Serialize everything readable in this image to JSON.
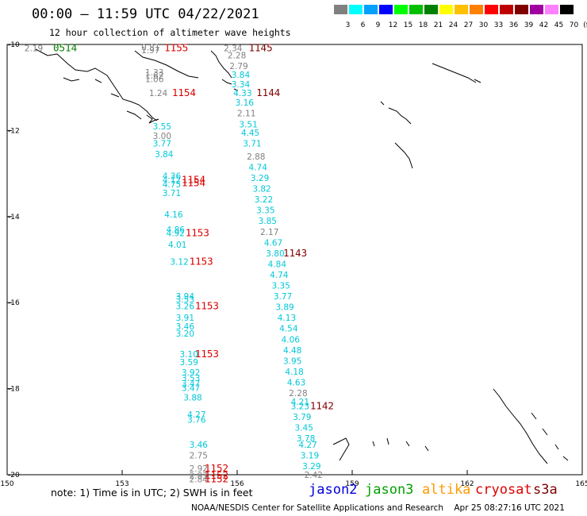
{
  "header": {
    "title": "00:00 — 11:59 UTC 04/22/2021",
    "subtitle": "12 hour collection of altimeter wave heights"
  },
  "color_scale": {
    "unit": "(ft)",
    "bins": [
      {
        "label": "3",
        "color": "#808080"
      },
      {
        "label": "6",
        "color": "#00ffff"
      },
      {
        "label": "9",
        "color": "#00a0ff"
      },
      {
        "label": "12",
        "color": "#0000ff"
      },
      {
        "label": "15",
        "color": "#00ff00"
      },
      {
        "label": "18",
        "color": "#00c000"
      },
      {
        "label": "21",
        "color": "#008000"
      },
      {
        "label": "24",
        "color": "#ffff00"
      },
      {
        "label": "27",
        "color": "#ffc000"
      },
      {
        "label": "30",
        "color": "#ff8000"
      },
      {
        "label": "33",
        "color": "#ff0000"
      },
      {
        "label": "36",
        "color": "#c00000"
      },
      {
        "label": "39",
        "color": "#800000"
      },
      {
        "label": "42",
        "color": "#a000a0"
      },
      {
        "label": "45",
        "color": "#ff80ff"
      },
      {
        "label": "70",
        "color": "#000000"
      }
    ]
  },
  "map": {
    "lon_labels": [
      "150",
      "153",
      "156",
      "159",
      "162",
      "165"
    ],
    "lat_labels": [
      "-10",
      "-12",
      "-14",
      "-16",
      "-18",
      "-20"
    ],
    "lon_range": [
      150,
      165
    ],
    "lat_range": [
      -20,
      -10
    ],
    "grid": false
  },
  "observations": [
    {
      "v": "2.19",
      "lon": 150.45,
      "lat": -10.08,
      "c": "#808080"
    },
    {
      "v": "2.34",
      "lon": 155.65,
      "lat": -10.08,
      "c": "#808080"
    },
    {
      "v": "0.81",
      "lon": 153.5,
      "lat": -10.06,
      "c": "#808080"
    },
    {
      "v": "1.97",
      "lon": 153.5,
      "lat": -10.13,
      "c": "#808080"
    },
    {
      "v": "2.28",
      "lon": 155.75,
      "lat": -10.25,
      "c": "#808080"
    },
    {
      "v": "2.79",
      "lon": 155.8,
      "lat": -10.5,
      "c": "#808080"
    },
    {
      "v": "1.33",
      "lon": 153.6,
      "lat": -10.65,
      "c": "#808080"
    },
    {
      "v": "1.62",
      "lon": 153.6,
      "lat": -10.72,
      "c": "#808080"
    },
    {
      "v": "1.06",
      "lon": 153.6,
      "lat": -10.8,
      "c": "#808080"
    },
    {
      "v": "3.84",
      "lon": 155.85,
      "lat": -10.7,
      "c": "#00c8d8"
    },
    {
      "v": "3.34",
      "lon": 155.85,
      "lat": -10.92,
      "c": "#00c8d8"
    },
    {
      "v": "1.24",
      "lon": 153.7,
      "lat": -11.13,
      "c": "#808080"
    },
    {
      "v": "4.33",
      "lon": 155.9,
      "lat": -11.13,
      "c": "#00c8d8"
    },
    {
      "v": "3.16",
      "lon": 155.95,
      "lat": -11.35,
      "c": "#00c8d8"
    },
    {
      "v": "2.11",
      "lon": 156.0,
      "lat": -11.6,
      "c": "#808080"
    },
    {
      "v": "3.51",
      "lon": 156.05,
      "lat": -11.85,
      "c": "#00c8d8"
    },
    {
      "v": "3.55",
      "lon": 153.8,
      "lat": -11.9,
      "c": "#00c8d8"
    },
    {
      "v": "4.45",
      "lon": 156.1,
      "lat": -12.05,
      "c": "#00c8d8"
    },
    {
      "v": "3.00",
      "lon": 153.8,
      "lat": -12.12,
      "c": "#808080"
    },
    {
      "v": "3.71",
      "lon": 156.15,
      "lat": -12.3,
      "c": "#00c8d8"
    },
    {
      "v": "3.77",
      "lon": 153.8,
      "lat": -12.3,
      "c": "#00c8d8"
    },
    {
      "v": "3.84",
      "lon": 153.85,
      "lat": -12.55,
      "c": "#00c8d8"
    },
    {
      "v": "2.88",
      "lon": 156.25,
      "lat": -12.6,
      "c": "#808080"
    },
    {
      "v": "4.74",
      "lon": 156.3,
      "lat": -12.85,
      "c": "#00c8d8"
    },
    {
      "v": "4.36",
      "lon": 154.05,
      "lat": -13.05,
      "c": "#00c8d8"
    },
    {
      "v": "3.29",
      "lon": 156.35,
      "lat": -13.1,
      "c": "#00c8d8"
    },
    {
      "v": "4.12",
      "lon": 154.05,
      "lat": -13.15,
      "c": "#00c8d8"
    },
    {
      "v": "4.75",
      "lon": 154.05,
      "lat": -13.25,
      "c": "#00c8d8"
    },
    {
      "v": "3.82",
      "lon": 156.4,
      "lat": -13.35,
      "c": "#00c8d8"
    },
    {
      "v": "3.71",
      "lon": 154.05,
      "lat": -13.45,
      "c": "#00c8d8"
    },
    {
      "v": "3.22",
      "lon": 156.45,
      "lat": -13.6,
      "c": "#00c8d8"
    },
    {
      "v": "3.35",
      "lon": 156.5,
      "lat": -13.85,
      "c": "#00c8d8"
    },
    {
      "v": "4.16",
      "lon": 154.1,
      "lat": -13.95,
      "c": "#00c8d8"
    },
    {
      "v": "3.85",
      "lon": 156.55,
      "lat": -14.1,
      "c": "#00c8d8"
    },
    {
      "v": "2.17",
      "lon": 156.6,
      "lat": -14.35,
      "c": "#808080"
    },
    {
      "v": "4.86",
      "lon": 154.15,
      "lat": -14.3,
      "c": "#00c8d8"
    },
    {
      "v": "4.92",
      "lon": 154.15,
      "lat": -14.38,
      "c": "#00c8d8"
    },
    {
      "v": "4.67",
      "lon": 156.7,
      "lat": -14.6,
      "c": "#00c8d8"
    },
    {
      "v": "4.01",
      "lon": 154.2,
      "lat": -14.65,
      "c": "#00c8d8"
    },
    {
      "v": "3.80",
      "lon": 156.75,
      "lat": -14.85,
      "c": "#00c8d8"
    },
    {
      "v": "4.84",
      "lon": 156.8,
      "lat": -15.1,
      "c": "#00c8d8"
    },
    {
      "v": "3.12",
      "lon": 154.25,
      "lat": -15.05,
      "c": "#00c8d8"
    },
    {
      "v": "4.74",
      "lon": 156.85,
      "lat": -15.35,
      "c": "#00c8d8"
    },
    {
      "v": "3.35",
      "lon": 156.9,
      "lat": -15.6,
      "c": "#00c8d8"
    },
    {
      "v": "3.77",
      "lon": 156.95,
      "lat": -15.85,
      "c": "#00c8d8"
    },
    {
      "v": "3.94",
      "lon": 154.4,
      "lat": -15.85,
      "c": "#00c8d8"
    },
    {
      "v": "3.53",
      "lon": 154.4,
      "lat": -15.92,
      "c": "#00c8d8"
    },
    {
      "v": "3.89",
      "lon": 157.0,
      "lat": -16.1,
      "c": "#00c8d8"
    },
    {
      "v": "3.26",
      "lon": 154.4,
      "lat": -16.08,
      "c": "#00c8d8"
    },
    {
      "v": "4.13",
      "lon": 157.05,
      "lat": -16.35,
      "c": "#00c8d8"
    },
    {
      "v": "3.91",
      "lon": 154.4,
      "lat": -16.35,
      "c": "#00c8d8"
    },
    {
      "v": "4.54",
      "lon": 157.1,
      "lat": -16.6,
      "c": "#00c8d8"
    },
    {
      "v": "3.46",
      "lon": 154.4,
      "lat": -16.55,
      "c": "#00c8d8"
    },
    {
      "v": "3.20",
      "lon": 154.4,
      "lat": -16.72,
      "c": "#00c8d8"
    },
    {
      "v": "4.06",
      "lon": 157.15,
      "lat": -16.85,
      "c": "#00c8d8"
    },
    {
      "v": "4.48",
      "lon": 157.2,
      "lat": -17.1,
      "c": "#00c8d8"
    },
    {
      "v": "3.10",
      "lon": 154.5,
      "lat": -17.2,
      "c": "#00c8d8"
    },
    {
      "v": "3.95",
      "lon": 157.2,
      "lat": -17.35,
      "c": "#00c8d8"
    },
    {
      "v": "3.59",
      "lon": 154.5,
      "lat": -17.38,
      "c": "#00c8d8"
    },
    {
      "v": "4.18",
      "lon": 157.25,
      "lat": -17.6,
      "c": "#00c8d8"
    },
    {
      "v": "3.92",
      "lon": 154.55,
      "lat": -17.62,
      "c": "#00c8d8"
    },
    {
      "v": "3.53",
      "lon": 154.55,
      "lat": -17.75,
      "c": "#00c8d8"
    },
    {
      "v": "4.63",
      "lon": 157.3,
      "lat": -17.85,
      "c": "#00c8d8"
    },
    {
      "v": "3.47",
      "lon": 154.55,
      "lat": -17.88,
      "c": "#00c8d8"
    },
    {
      "v": "3.47",
      "lon": 154.55,
      "lat": -17.98,
      "c": "#00c8d8"
    },
    {
      "v": "2.28",
      "lon": 157.35,
      "lat": -18.1,
      "c": "#808080"
    },
    {
      "v": "3.88",
      "lon": 154.6,
      "lat": -18.2,
      "c": "#00c8d8"
    },
    {
      "v": "4.21",
      "lon": 157.4,
      "lat": -18.3,
      "c": "#00c8d8"
    },
    {
      "v": "3.23",
      "lon": 157.4,
      "lat": -18.4,
      "c": "#00c8d8"
    },
    {
      "v": "4.27",
      "lon": 154.7,
      "lat": -18.6,
      "c": "#00c8d8"
    },
    {
      "v": "3.79",
      "lon": 157.45,
      "lat": -18.65,
      "c": "#00c8d8"
    },
    {
      "v": "3.76",
      "lon": 154.7,
      "lat": -18.72,
      "c": "#00c8d8"
    },
    {
      "v": "3.45",
      "lon": 157.5,
      "lat": -18.9,
      "c": "#00c8d8"
    },
    {
      "v": "3.78",
      "lon": 157.55,
      "lat": -19.15,
      "c": "#00c8d8"
    },
    {
      "v": "3.46",
      "lon": 154.75,
      "lat": -19.3,
      "c": "#00c8d8"
    },
    {
      "v": "4.27",
      "lon": 157.6,
      "lat": -19.3,
      "c": "#00c8d8"
    },
    {
      "v": "2.75",
      "lon": 154.75,
      "lat": -19.55,
      "c": "#808080"
    },
    {
      "v": "3.19",
      "lon": 157.65,
      "lat": -19.55,
      "c": "#00c8d8"
    },
    {
      "v": "3.29",
      "lon": 157.7,
      "lat": -19.8,
      "c": "#00c8d8"
    },
    {
      "v": "2.92",
      "lon": 154.75,
      "lat": -19.85,
      "c": "#808080"
    },
    {
      "v": "2.42",
      "lon": 157.75,
      "lat": -20.0,
      "c": "#808080"
    },
    {
      "v": "2.83",
      "lon": 154.75,
      "lat": -20.02,
      "c": "#808080"
    },
    {
      "v": "2.84",
      "lon": 154.75,
      "lat": -20.1,
      "c": "#808080"
    }
  ],
  "time_labels": [
    {
      "t": "0514",
      "lon": 151.2,
      "lat": -10.08,
      "c": "#008000"
    },
    {
      "t": "1155",
      "lon": 154.1,
      "lat": -10.08,
      "c": "#dd0000"
    },
    {
      "t": "1145",
      "lon": 156.3,
      "lat": -10.08,
      "c": "#800000"
    },
    {
      "t": "1154",
      "lon": 154.3,
      "lat": -11.13,
      "c": "#dd0000"
    },
    {
      "t": "1144",
      "lon": 156.5,
      "lat": -11.13,
      "c": "#800000"
    },
    {
      "t": "1154",
      "lon": 154.55,
      "lat": -13.15,
      "c": "#dd0000"
    },
    {
      "t": "1154",
      "lon": 154.55,
      "lat": -13.22,
      "c": "#dd0000"
    },
    {
      "t": "1153",
      "lon": 154.65,
      "lat": -14.38,
      "c": "#dd0000"
    },
    {
      "t": "1143",
      "lon": 157.2,
      "lat": -14.85,
      "c": "#800000"
    },
    {
      "t": "1153",
      "lon": 154.75,
      "lat": -15.05,
      "c": "#dd0000"
    },
    {
      "t": "1153",
      "lon": 154.9,
      "lat": -16.08,
      "c": "#dd0000"
    },
    {
      "t": "1153",
      "lon": 154.9,
      "lat": -17.2,
      "c": "#dd0000"
    },
    {
      "t": "1142",
      "lon": 157.9,
      "lat": -18.4,
      "c": "#800000"
    },
    {
      "t": "1152",
      "lon": 155.15,
      "lat": -19.85,
      "c": "#dd0000"
    },
    {
      "t": "1152",
      "lon": 155.15,
      "lat": -20.02,
      "c": "#dd0000"
    },
    {
      "t": "1152",
      "lon": 155.15,
      "lat": -20.1,
      "c": "#dd0000"
    }
  ],
  "satellites": [
    {
      "name": "jason2",
      "color": "#0000dd"
    },
    {
      "name": "jason3",
      "color": "#00a000"
    },
    {
      "name": "altika",
      "color": "#ff9900"
    },
    {
      "name": "cryosat",
      "color": "#dd0000"
    },
    {
      "name": "s3a",
      "color": "#800000"
    }
  ],
  "note": "note: 1) Time is in UTC; 2) SWH is in feet",
  "footer": "NOAA/NESDIS Center for Satellite Applications and Research    Apr 25 08:27:16 UTC 2021"
}
